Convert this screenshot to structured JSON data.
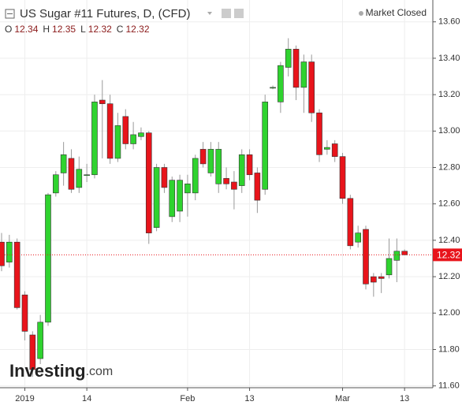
{
  "chart_data": {
    "type": "candlestick",
    "title": "US Sugar #11 Futures, D, (CFD)",
    "status": "Market Closed",
    "ohlc_header": [
      {
        "label": "O",
        "value": 12.34
      },
      {
        "label": "H",
        "value": 12.35
      },
      {
        "label": "L",
        "value": 12.32
      },
      {
        "label": "C",
        "value": 12.32
      }
    ],
    "last_price": 12.32,
    "watermark": [
      "Investing",
      ".com"
    ],
    "up_color": "#2fd32f",
    "down_color": "#e8141b",
    "grid": true,
    "categories": [
      null,
      null,
      null,
      "2019",
      null,
      null,
      null,
      null,
      null,
      null,
      null,
      "14",
      null,
      null,
      null,
      null,
      null,
      null,
      null,
      null,
      null,
      null,
      null,
      null,
      "Feb",
      null,
      null,
      null,
      null,
      null,
      null,
      null,
      "13",
      null,
      null,
      null,
      null,
      null,
      null,
      null,
      null,
      null,
      null,
      null,
      "Mar",
      null,
      null,
      null,
      null,
      null,
      null,
      null,
      "13"
    ],
    "open": [
      12.39,
      12.28,
      12.39,
      12.1,
      11.88,
      11.75,
      11.95,
      12.66,
      12.77,
      12.85,
      12.69,
      12.76,
      12.76,
      13.17,
      13.15,
      12.85,
      13.08,
      12.93,
      12.97,
      12.99,
      12.47,
      12.8,
      12.53,
      12.56,
      12.66,
      12.66,
      12.9,
      12.77,
      12.71,
      12.74,
      12.72,
      12.7,
      12.87,
      12.77,
      12.68,
      13.24,
      13.16,
      13.35,
      13.45,
      13.24,
      13.38,
      13.1,
      12.9,
      12.93,
      12.86,
      12.63,
      12.39,
      12.46,
      12.2,
      12.2,
      12.21,
      12.29,
      12.34
    ],
    "high": [
      12.44,
      12.43,
      12.41,
      12.12,
      11.9,
      11.99,
      12.66,
      12.78,
      12.94,
      12.9,
      12.86,
      12.82,
      13.2,
      13.28,
      13.2,
      13.1,
      13.12,
      13.05,
      13.02,
      13.0,
      12.82,
      12.82,
      12.75,
      12.76,
      12.76,
      12.87,
      12.94,
      12.94,
      12.94,
      12.8,
      12.78,
      12.9,
      12.9,
      12.8,
      13.2,
      13.25,
      13.38,
      13.51,
      13.47,
      13.42,
      13.42,
      13.12,
      12.95,
      12.95,
      12.88,
      12.65,
      12.48,
      12.48,
      12.22,
      12.22,
      12.41,
      12.41,
      12.35
    ],
    "low": [
      12.23,
      12.25,
      12.02,
      11.85,
      11.65,
      11.72,
      11.93,
      12.64,
      12.7,
      12.66,
      12.66,
      12.72,
      12.74,
      12.85,
      12.82,
      12.83,
      12.9,
      12.9,
      12.95,
      12.38,
      12.45,
      12.66,
      12.5,
      12.5,
      12.53,
      12.62,
      12.8,
      12.75,
      12.66,
      12.68,
      12.57,
      12.66,
      12.73,
      12.55,
      12.65,
      13.23,
      13.1,
      13.3,
      13.17,
      13.1,
      13.05,
      12.83,
      12.87,
      12.83,
      12.6,
      12.35,
      12.36,
      12.13,
      12.09,
      12.11,
      12.19,
      12.17,
      12.32
    ],
    "close": [
      12.26,
      12.39,
      12.03,
      11.9,
      11.69,
      11.95,
      12.65,
      12.76,
      12.87,
      12.68,
      12.79,
      12.76,
      13.16,
      13.15,
      12.85,
      13.03,
      12.93,
      12.98,
      12.99,
      12.44,
      12.8,
      12.69,
      12.73,
      12.73,
      12.71,
      12.85,
      12.82,
      12.9,
      12.9,
      12.71,
      12.68,
      12.87,
      12.76,
      12.62,
      13.16,
      13.24,
      13.36,
      13.45,
      13.24,
      13.38,
      13.1,
      12.87,
      12.91,
      12.86,
      12.63,
      12.37,
      12.44,
      12.16,
      12.17,
      12.19,
      12.3,
      12.34,
      12.32
    ],
    "ylim": [
      11.59,
      13.72
    ],
    "yticks": [
      {
        "value": 11.6,
        "label": "11.60"
      },
      {
        "value": 11.8,
        "label": "11.80"
      },
      {
        "value": 12.0,
        "label": "12.00"
      },
      {
        "value": 12.2,
        "label": "12.20"
      },
      {
        "value": 12.4,
        "label": "12.40"
      },
      {
        "value": 12.6,
        "label": "12.60"
      },
      {
        "value": 12.8,
        "label": "12.80"
      },
      {
        "value": 13.0,
        "label": "13.00"
      },
      {
        "value": 13.2,
        "label": "13.20"
      },
      {
        "value": 13.4,
        "label": "13.40"
      },
      {
        "value": 13.6,
        "label": "13.60"
      }
    ]
  }
}
